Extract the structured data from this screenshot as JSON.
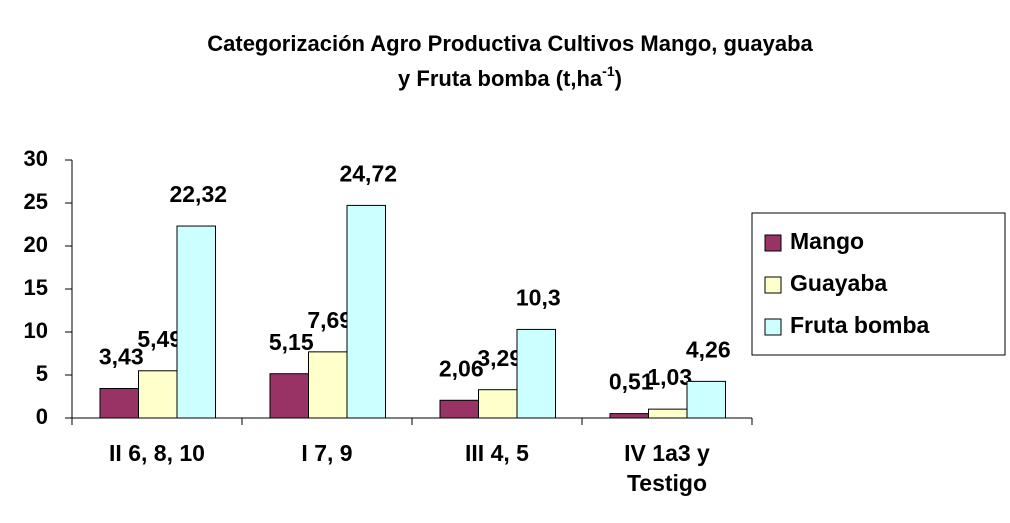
{
  "chart_data": {
    "type": "bar",
    "title": {
      "lines": [
        "Categorización Agro Productiva Cultivos Mango, guayaba",
        "y Fruta bomba  (t,ha"
      ],
      "superscript": "-1",
      "close": ")"
    },
    "categories": [
      "II 6, 8, 10",
      "I 7, 9",
      "III 4, 5",
      "IV 1a3 y\nTestigo"
    ],
    "series": [
      {
        "name": "Mango",
        "color": "#993366",
        "values": [
          3.43,
          5.15,
          2.06,
          0.51
        ],
        "value_labels": [
          "3,43",
          "5,15",
          "2,06",
          "0,51"
        ]
      },
      {
        "name": "Guayaba",
        "color": "#FFFFCC",
        "values": [
          5.49,
          7.69,
          3.29,
          1.03
        ],
        "value_labels": [
          "5,49",
          "7,69",
          "3,29",
          "1,03"
        ]
      },
      {
        "name": "Fruta bomba",
        "color": "#CCFFFF",
        "values": [
          22.32,
          24.72,
          10.3,
          4.26
        ],
        "value_labels": [
          "22,32",
          "24,72",
          "10,3",
          "4,26"
        ]
      }
    ],
    "ylim": [
      0,
      30
    ],
    "yticks": [
      0,
      5,
      10,
      15,
      20,
      25,
      30
    ],
    "grid": false,
    "legend": "right"
  }
}
